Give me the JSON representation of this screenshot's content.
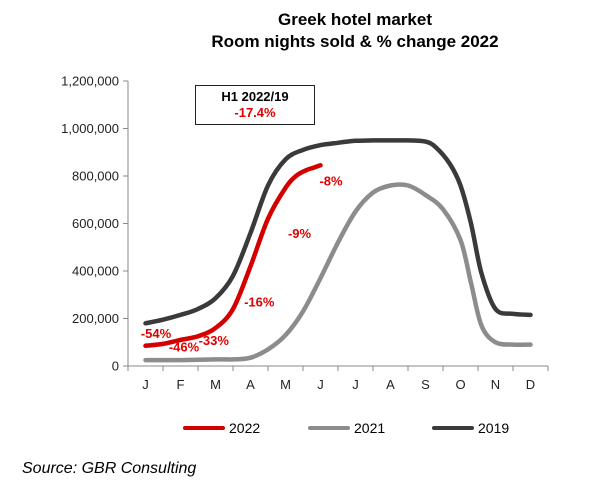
{
  "chart_data": {
    "type": "line",
    "title": "Greek hotel market",
    "subtitle": "Room nights sold & % change 2022",
    "categories": [
      "J",
      "F",
      "M",
      "A",
      "M",
      "J",
      "J",
      "A",
      "S",
      "O",
      "N",
      "D"
    ],
    "ylim": [
      0,
      1200000
    ],
    "yticks": [
      "0",
      "200,000",
      "400,000",
      "600,000",
      "800,000",
      "1,000,000",
      "1,200,000"
    ],
    "series": [
      {
        "name": "2022",
        "color": "#d40000",
        "x": [
          0,
          0.5,
          1,
          1.5,
          2,
          2.5,
          3,
          3.5,
          4,
          4.3,
          4.6,
          4.8,
          5.0
        ],
        "values": [
          85000,
          93000,
          110000,
          125000,
          160000,
          240000,
          420000,
          620000,
          750000,
          800000,
          825000,
          835000,
          845000
        ]
      },
      {
        "name": "2021",
        "color": "#8c8c8c",
        "x": [
          0,
          1,
          2,
          2.5,
          3,
          3.5,
          4,
          4.5,
          5,
          5.5,
          6,
          6.5,
          7,
          7.5,
          8,
          8.5,
          9,
          9.3,
          9.6,
          10,
          10.5,
          11
        ],
        "values": [
          25000,
          25000,
          28000,
          28000,
          35000,
          70000,
          130000,
          230000,
          370000,
          520000,
          650000,
          730000,
          760000,
          760000,
          720000,
          660000,
          530000,
          350000,
          170000,
          100000,
          90000,
          90000
        ]
      },
      {
        "name": "2019",
        "color": "#3a3a3a",
        "x": [
          0,
          0.5,
          1,
          1.5,
          2,
          2.5,
          3,
          3.5,
          4,
          4.5,
          5,
          5.5,
          6,
          6.5,
          7,
          7.5,
          8,
          8.3,
          8.7,
          9,
          9.3,
          9.6,
          10,
          10.5,
          11
        ],
        "values": [
          180000,
          195000,
          215000,
          240000,
          285000,
          380000,
          560000,
          760000,
          870000,
          910000,
          930000,
          940000,
          948000,
          950000,
          950000,
          950000,
          945000,
          920000,
          850000,
          760000,
          600000,
          390000,
          240000,
          220000,
          215000
        ]
      }
    ],
    "annotations": [
      {
        "text": "-54%",
        "x": 0.3,
        "y": 118000
      },
      {
        "text": "-46%",
        "x": 1.1,
        "y": 62000
      },
      {
        "text": "-33%",
        "x": 1.95,
        "y": 88000
      },
      {
        "text": "-16%",
        "x": 3.25,
        "y": 250000
      },
      {
        "text": "-9%",
        "x": 4.4,
        "y": 540000
      },
      {
        "text": "-8%",
        "x": 5.3,
        "y": 760000
      }
    ],
    "grid": false,
    "legend": "bottom"
  },
  "box": {
    "title": "H1 2022/19",
    "value": "-17.4%"
  },
  "source": "Source: GBR Consulting"
}
